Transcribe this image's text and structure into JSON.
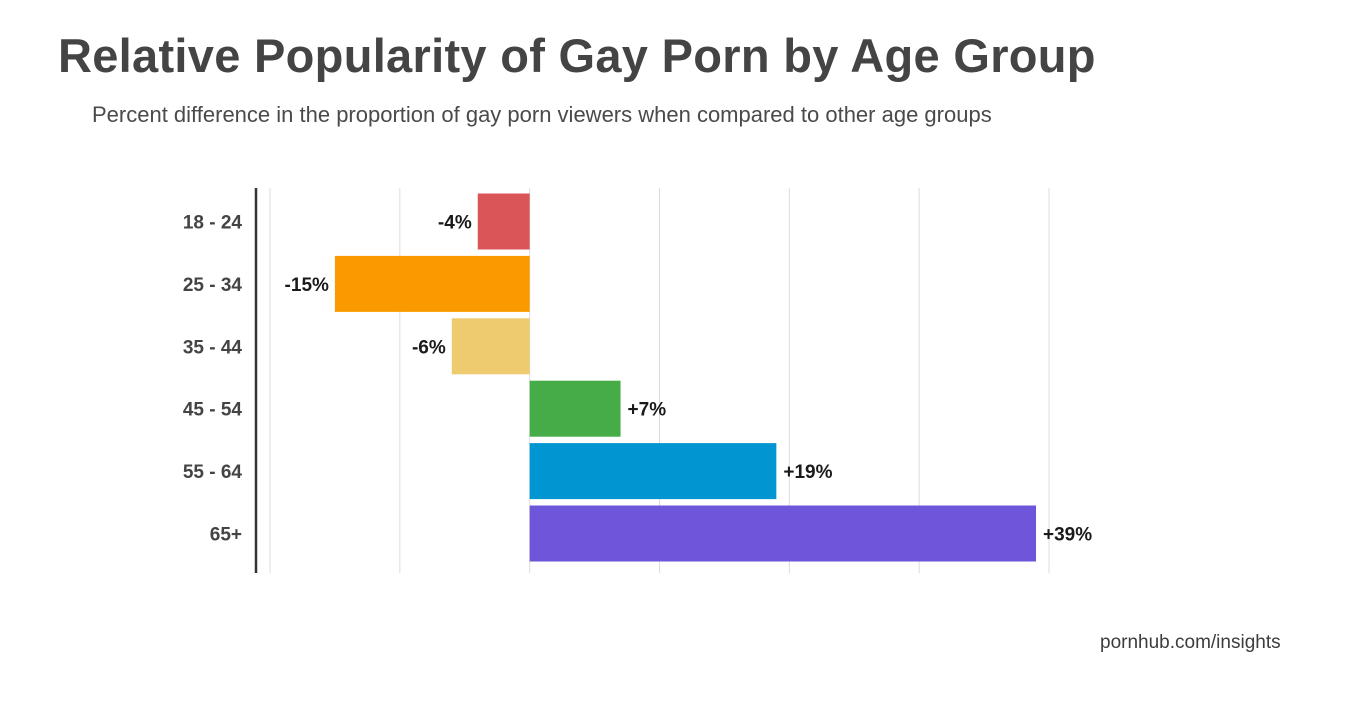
{
  "title": "Relative Popularity of Gay Porn by Age Group",
  "subtitle": "Percent difference in the proportion of gay porn viewers when compared to other age groups",
  "source": "pornhub.com/insights",
  "chart_data": {
    "type": "bar",
    "orientation": "horizontal",
    "categories": [
      "18 - 24",
      "25 - 34",
      "35 - 44",
      "45 - 54",
      "55 - 64",
      "65+"
    ],
    "values": [
      -4,
      -15,
      -6,
      7,
      19,
      39
    ],
    "data_labels": [
      "-4%",
      "-15%",
      "-6%",
      "+7%",
      "+19%",
      "+39%"
    ],
    "colors": [
      "#d95558",
      "#fa9a00",
      "#eecb6e",
      "#45ac48",
      "#0196d2",
      "#6e55da"
    ],
    "xlim": [
      -20,
      40
    ],
    "grid": true,
    "title": "Relative Popularity of Gay Porn by Age Group",
    "subtitle": "Percent difference in the proportion of gay porn viewers when compared to other age groups",
    "xlabel": "",
    "ylabel": ""
  }
}
